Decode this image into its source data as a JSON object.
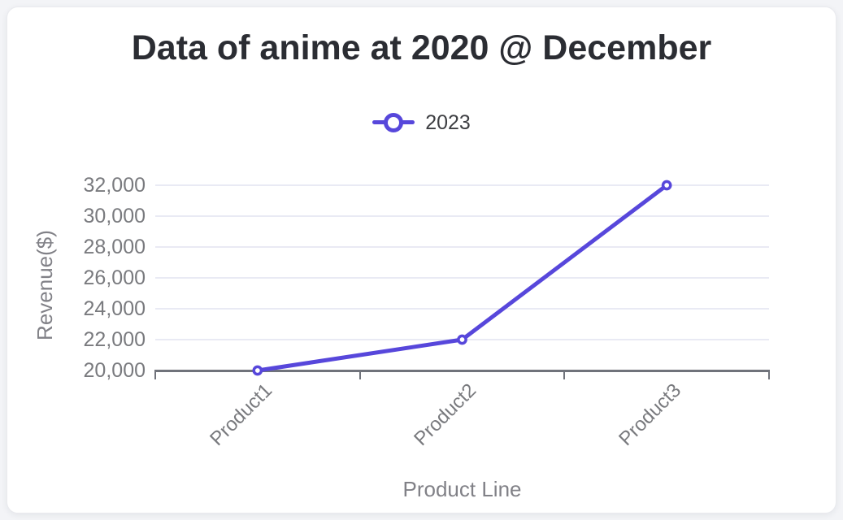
{
  "page": {
    "background_color": "#f3f4f7",
    "card_background_color": "#ffffff"
  },
  "chart_data": {
    "type": "line",
    "title": "Data of anime at 2020 @ December",
    "xlabel": "Product Line",
    "ylabel": "Revenue($)",
    "categories": [
      "Product1",
      "Product2",
      "Product3"
    ],
    "series": [
      {
        "name": "2023",
        "values": [
          20000,
          22000,
          32000
        ],
        "color": "#5747db",
        "marker": "hollow-circle"
      }
    ],
    "ylim": [
      20000,
      32000
    ],
    "ytick_step": 2000,
    "ytick_labels": [
      "20,000",
      "22,000",
      "24,000",
      "26,000",
      "28,000",
      "30,000",
      "32,000"
    ],
    "grid": true,
    "legend_position": "top-center",
    "theme": {
      "accent_color": "#5747db",
      "grid_color": "#e9eaf4",
      "axis_color": "#70737b",
      "tick_label_color": "#797a7e",
      "axis_title_color": "#818187",
      "title_color": "#2b2d33",
      "legend_text_color": "#3d3e42"
    }
  }
}
